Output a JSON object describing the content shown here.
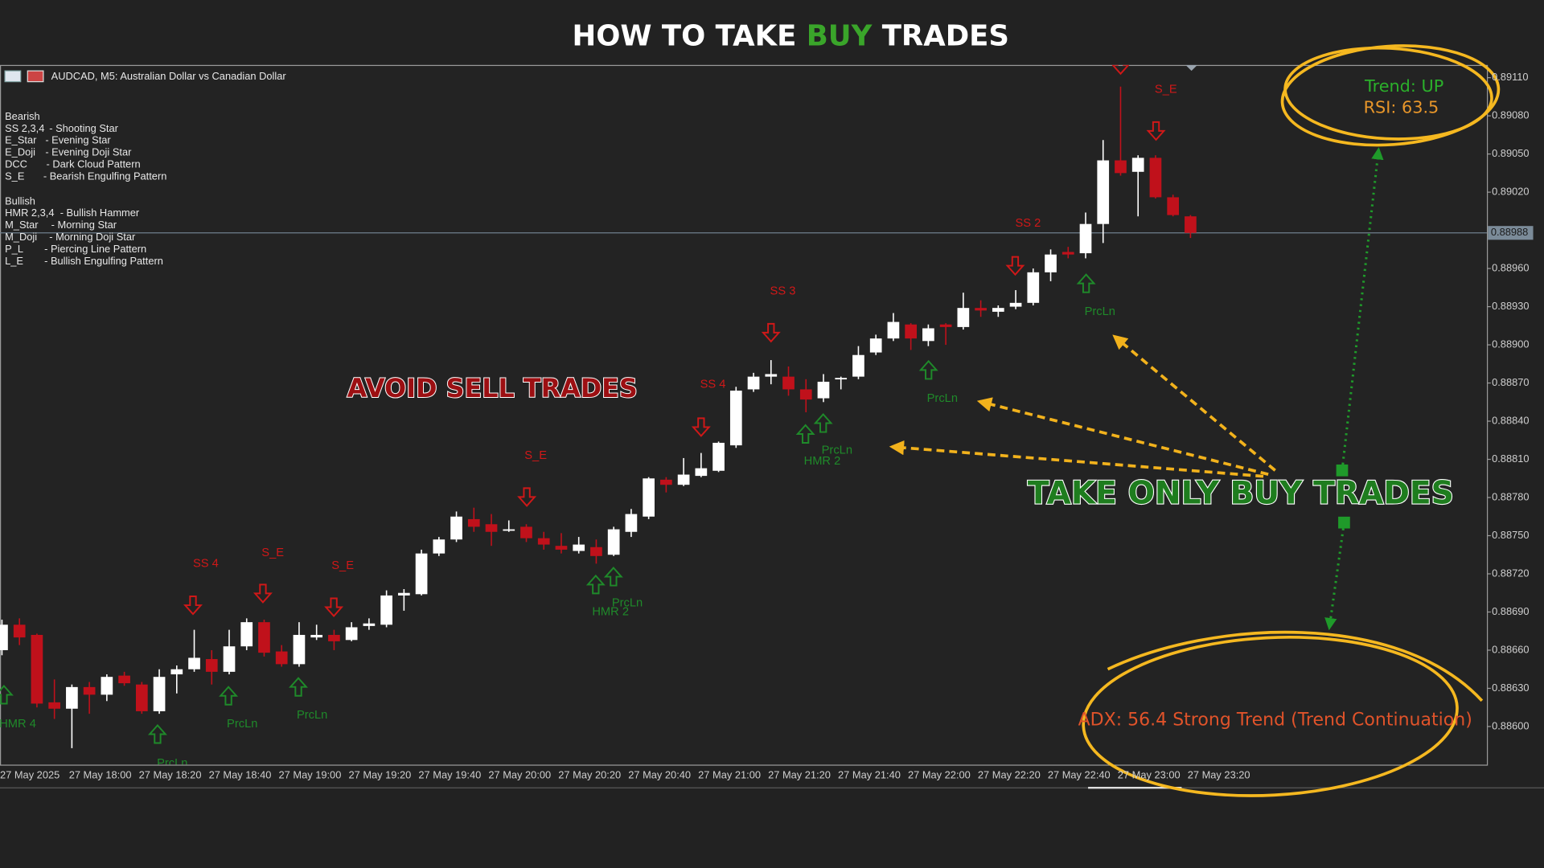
{
  "header": {
    "title_parts": [
      "HOW TO TAKE",
      "BUY",
      "TRADES"
    ]
  },
  "overlay": {
    "avoid": "AVOID SELL TRADES",
    "take": "TAKE ONLY BUY TRADES",
    "trend": "Trend: UP",
    "rsi": "RSI: 63.5",
    "adx": "ADX: 56.4 Strong Trend (Trend Continuation)"
  },
  "legend": {
    "bearish": {
      "title": "Bearish",
      "items": [
        {
          "code": "SS 2,3,4",
          "desc": "- Shooting Star"
        },
        {
          "code": "E_Star",
          "desc": "- Evening Star"
        },
        {
          "code": "E_Doji",
          "desc": "- Evening Doji Star"
        },
        {
          "code": "DCC",
          "desc": "- Dark Cloud Pattern"
        },
        {
          "code": "S_E",
          "desc": "- Bearish Engulfing Pattern"
        }
      ]
    },
    "bullish": {
      "title": "Bullish",
      "items": [
        {
          "code": "HMR 2,3,4",
          "desc": "- Bullish Hammer"
        },
        {
          "code": "M_Star",
          "desc": "- Morning Star"
        },
        {
          "code": "M_Doji",
          "desc": "- Morning Doji Star"
        },
        {
          "code": "P_L",
          "desc": "- Piercing Line Pattern"
        },
        {
          "code": "L_E",
          "desc": "- Bullish Engulfing Pattern"
        }
      ]
    }
  },
  "chart_data": {
    "type": "candlestick",
    "title": "AUDCAD, M5:  Australian Dollar vs Canadian Dollar",
    "categories": [
      "27 May 2025",
      null,
      null,
      null,
      "27 May 18:00",
      null,
      null,
      null,
      "27 May 18:20",
      null,
      null,
      null,
      "27 May 18:40",
      null,
      null,
      null,
      "27 May 19:00",
      null,
      null,
      null,
      "27 May 19:20",
      null,
      null,
      null,
      "27 May 19:40",
      null,
      null,
      null,
      "27 May 20:00",
      null,
      null,
      null,
      "27 May 20:20",
      null,
      null,
      null,
      "27 May 20:40",
      null,
      null,
      null,
      "27 May 21:00",
      null,
      null,
      null,
      "27 May 21:20",
      null,
      null,
      null,
      "27 May 21:40",
      null,
      null,
      null,
      "27 May 22:00",
      null,
      null,
      null,
      "27 May 22:20",
      null,
      null,
      null,
      "27 May 22:40",
      null,
      null,
      null,
      "27 May 23:00",
      null,
      null,
      null,
      "27 May 23:20"
    ],
    "open": [
      0.8866,
      0.8868,
      0.88672,
      0.88619,
      0.88614,
      0.88631,
      0.88625,
      0.8864,
      0.88633,
      0.88612,
      0.88641,
      0.88645,
      0.88653,
      0.88643,
      0.88663,
      0.88682,
      0.88659,
      0.88649,
      0.8867,
      0.88672,
      0.88668,
      0.88679,
      0.8868,
      0.88703,
      0.88704,
      0.88736,
      0.88747,
      0.88763,
      0.88759,
      0.88754,
      0.88757,
      0.88748,
      0.88742,
      0.88738,
      0.88741,
      0.88735,
      0.88753,
      0.88765,
      0.88794,
      0.8879,
      0.88797,
      0.88801,
      0.88821,
      0.88865,
      0.88875,
      0.88875,
      0.88865,
      0.88858,
      0.88873,
      0.88875,
      0.88894,
      0.88905,
      0.88916,
      0.88903,
      0.88916,
      0.88914,
      0.88929,
      0.88926,
      0.8893,
      0.88933,
      0.88957,
      0.88973,
      0.88972,
      0.88995,
      0.89045,
      0.89036,
      0.89047,
      0.89016,
      0.89001
    ],
    "high": [
      0.88684,
      0.88685,
      0.88673,
      0.88637,
      0.88633,
      0.88635,
      0.88641,
      0.88643,
      0.88635,
      0.88645,
      0.88648,
      0.88676,
      0.8866,
      0.88676,
      0.88685,
      0.88684,
      0.88664,
      0.88682,
      0.8868,
      0.88676,
      0.88682,
      0.88685,
      0.88707,
      0.88708,
      0.88739,
      0.88749,
      0.88769,
      0.88772,
      0.88767,
      0.88762,
      0.88759,
      0.88753,
      0.88752,
      0.88749,
      0.88747,
      0.88757,
      0.88771,
      0.88796,
      0.88796,
      0.88811,
      0.88815,
      0.88824,
      0.88867,
      0.88878,
      0.88888,
      0.88883,
      0.88873,
      0.88877,
      0.88875,
      0.88899,
      0.88908,
      0.88925,
      0.88917,
      0.88916,
      0.88917,
      0.88941,
      0.88935,
      0.88931,
      0.88943,
      0.8896,
      0.88975,
      0.88977,
      0.89004,
      0.89061,
      0.89103,
      0.89049,
      0.89049,
      0.89018,
      0.89002
    ],
    "low": [
      0.88656,
      0.88664,
      0.88615,
      0.88606,
      0.88583,
      0.8861,
      0.8862,
      0.88632,
      0.8861,
      0.8861,
      0.88626,
      0.88643,
      0.88633,
      0.88641,
      0.8866,
      0.88655,
      0.88647,
      0.88647,
      0.88668,
      0.8866,
      0.88667,
      0.88676,
      0.88678,
      0.88691,
      0.88703,
      0.88734,
      0.88745,
      0.88753,
      0.88742,
      0.88753,
      0.88745,
      0.88739,
      0.88736,
      0.88736,
      0.88728,
      0.88734,
      0.88749,
      0.88763,
      0.88784,
      0.88789,
      0.88796,
      0.888,
      0.88819,
      0.88863,
      0.88869,
      0.8886,
      0.88847,
      0.88855,
      0.88865,
      0.88873,
      0.88892,
      0.88903,
      0.88896,
      0.88899,
      0.889,
      0.88912,
      0.88922,
      0.88922,
      0.88928,
      0.88931,
      0.8895,
      0.88968,
      0.88968,
      0.8898,
      0.89033,
      0.89001,
      0.89015,
      0.89001,
      0.88984
    ],
    "close": [
      0.8868,
      0.8867,
      0.88618,
      0.88614,
      0.88631,
      0.88625,
      0.88639,
      0.88634,
      0.88612,
      0.88639,
      0.88645,
      0.88654,
      0.88643,
      0.88663,
      0.88682,
      0.88658,
      0.88649,
      0.88672,
      0.88672,
      0.88667,
      0.88678,
      0.88681,
      0.88703,
      0.88705,
      0.88736,
      0.88747,
      0.88765,
      0.88757,
      0.88753,
      0.88755,
      0.88748,
      0.88743,
      0.88739,
      0.88743,
      0.88734,
      0.88755,
      0.88767,
      0.88795,
      0.8879,
      0.88798,
      0.88803,
      0.88823,
      0.88864,
      0.88875,
      0.88877,
      0.88865,
      0.88857,
      0.88871,
      0.88874,
      0.88892,
      0.88905,
      0.88918,
      0.88905,
      0.88913,
      0.88914,
      0.88929,
      0.88927,
      0.88929,
      0.88933,
      0.88957,
      0.88971,
      0.88971,
      0.88995,
      0.89045,
      0.89035,
      0.89047,
      0.89016,
      0.89002,
      0.88988
    ],
    "up_color": "#ffffff",
    "down_color": "#c0111b",
    "ylim": [
      0.8857,
      0.8912
    ],
    "yticks": [
      {
        "value": 0.886,
        "label": "0.88600"
      },
      {
        "value": 0.8863,
        "label": "0.88630"
      },
      {
        "value": 0.8866,
        "label": "0.88660"
      },
      {
        "value": 0.8869,
        "label": "0.88690"
      },
      {
        "value": 0.8872,
        "label": "0.88720"
      },
      {
        "value": 0.8875,
        "label": "0.88750"
      },
      {
        "value": 0.8878,
        "label": "0.88780"
      },
      {
        "value": 0.8881,
        "label": "0.88810"
      },
      {
        "value": 0.8884,
        "label": "0.88840"
      },
      {
        "value": 0.8887,
        "label": "0.88870"
      },
      {
        "value": 0.889,
        "label": "0.88900"
      },
      {
        "value": 0.8893,
        "label": "0.88930"
      },
      {
        "value": 0.8896,
        "label": "0.88960"
      },
      {
        "value": 0.8902,
        "label": "0.89020"
      },
      {
        "value": 0.8905,
        "label": "0.89050"
      },
      {
        "value": 0.8908,
        "label": "0.89080"
      },
      {
        "value": 0.8911,
        "label": "0.89110"
      }
    ],
    "current_price": {
      "value": 0.88988,
      "label": "0.88988"
    },
    "grid": false,
    "signals": {
      "bearish": [
        "SS 4",
        "S_E",
        "S_E",
        "S_E",
        "SS 4",
        "SS 3",
        "SS 2",
        "S_E"
      ],
      "bullish": [
        "HMR 4",
        "PrcLn",
        "PrcLn",
        "PrcLn",
        "HMR 2",
        "PrcLn",
        "HMR 2",
        "PrcLn",
        "PrcLn",
        "PrcLn"
      ]
    }
  }
}
